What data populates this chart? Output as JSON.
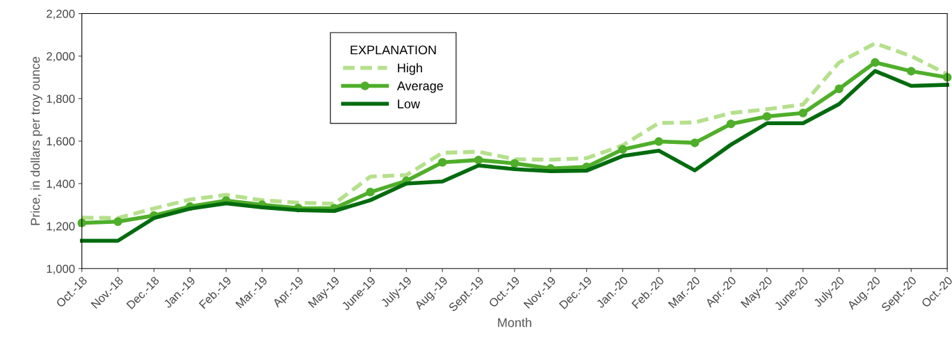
{
  "chart_data": {
    "type": "line",
    "xlabel": "Month",
    "ylabel": "Price, in dollars per troy ounce",
    "legend_title": "EXPLANATION",
    "legend": "top",
    "grid": false,
    "categories": [
      "Oct.-18",
      "Nov.-18",
      "Dec.-18",
      "Jan.-19",
      "Feb.-19",
      "Mar.-19",
      "Apr.-19",
      "May-19",
      "June-19",
      "July-19",
      "Aug.-19",
      "Sept.-19",
      "Oct.-19",
      "Nov.-19",
      "Dec.-19",
      "Jan.-20",
      "Feb.-20",
      "Mar.-20",
      "Apr.-20",
      "May-20",
      "June-20",
      "July-20",
      "Aug.-20",
      "Sept.-20",
      "Oct.-20"
    ],
    "ylim": [
      1000,
      2200
    ],
    "yticks": [
      {
        "value": 1000,
        "label": "1,000"
      },
      {
        "value": 1200,
        "label": "1,200"
      },
      {
        "value": 1400,
        "label": "1,400"
      },
      {
        "value": 1600,
        "label": "1,600"
      },
      {
        "value": 1800,
        "label": "1,800"
      },
      {
        "value": 2000,
        "label": "2,000"
      },
      {
        "value": 2200,
        "label": "2,200"
      }
    ],
    "series": [
      {
        "name": "High",
        "color": "#b5e08c",
        "line_style": "dashed",
        "marker": "none",
        "values": [
          1240,
          1238,
          1283,
          1325,
          1347,
          1322,
          1310,
          1305,
          1433,
          1440,
          1545,
          1550,
          1515,
          1512,
          1520,
          1580,
          1685,
          1688,
          1732,
          1750,
          1772,
          1970,
          2060,
          2000,
          1915
        ]
      },
      {
        "name": "Average",
        "color": "#4fae2a",
        "line_style": "solid",
        "marker": "circle",
        "values": [
          1215,
          1221,
          1250,
          1292,
          1320,
          1300,
          1285,
          1284,
          1360,
          1413,
          1500,
          1511,
          1495,
          1471,
          1479,
          1561,
          1598,
          1592,
          1681,
          1716,
          1732,
          1846,
          1970,
          1929,
          1900
        ]
      },
      {
        "name": "Low",
        "color": "#006b0e",
        "line_style": "solid",
        "marker": "none",
        "values": [
          1131,
          1131,
          1238,
          1282,
          1307,
          1288,
          1275,
          1271,
          1322,
          1400,
          1410,
          1485,
          1468,
          1458,
          1461,
          1530,
          1555,
          1462,
          1583,
          1684,
          1684,
          1774,
          1930,
          1860,
          1865
        ]
      }
    ]
  }
}
